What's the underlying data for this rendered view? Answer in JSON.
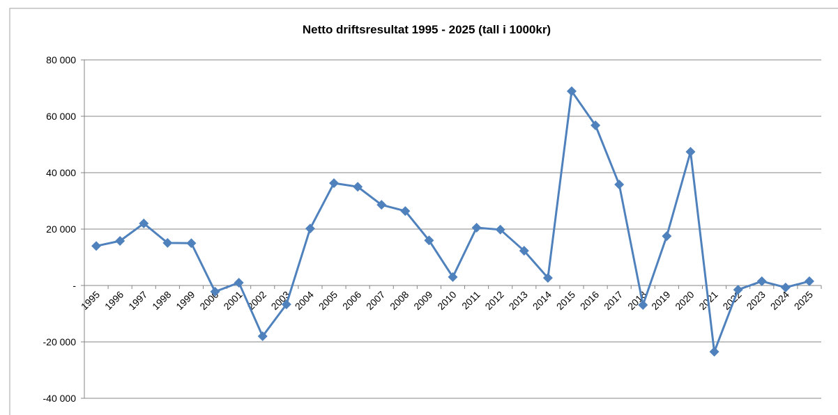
{
  "chart_data": {
    "type": "line",
    "title": "Netto driftsresultat 1995 - 2025 (tall i 1000kr)",
    "categories": [
      "1995",
      "1996",
      "1997",
      "1998",
      "1999",
      "2000",
      "2001",
      "2002",
      "2003",
      "2004",
      "2005",
      "2006",
      "2007",
      "2008",
      "2009",
      "2010",
      "2011",
      "2012",
      "2013",
      "2014",
      "2015",
      "2016",
      "2017",
      "2018",
      "2019",
      "2020",
      "2021",
      "2022",
      "2023",
      "2024",
      "2025"
    ],
    "values": [
      14000,
      15800,
      22000,
      15100,
      15000,
      -2200,
      1000,
      -18000,
      -6700,
      20200,
      36300,
      35000,
      28600,
      26400,
      16000,
      3000,
      20500,
      19800,
      12300,
      2700,
      68900,
      56800,
      35800,
      -6900,
      17500,
      47400,
      -23500,
      -1500,
      1500,
      -700,
      1500
    ],
    "color": "#4f81bd",
    "ylim": [
      -40000,
      80000
    ],
    "yticks": [
      {
        "value": -40000,
        "label": "-40 000"
      },
      {
        "value": -20000,
        "label": "-20 000"
      },
      {
        "value": 0,
        "label": "-"
      },
      {
        "value": 20000,
        "label": "20 000"
      },
      {
        "value": 40000,
        "label": "40 000"
      },
      {
        "value": 60000,
        "label": "60 000"
      },
      {
        "value": 80000,
        "label": "80 000"
      }
    ],
    "grid": true
  }
}
